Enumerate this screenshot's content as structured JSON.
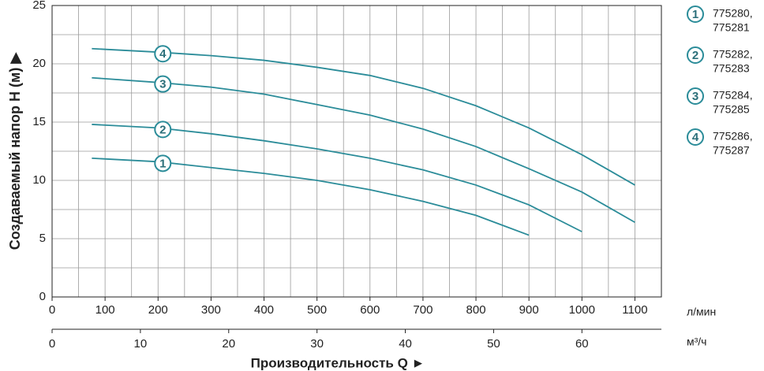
{
  "chart_data": {
    "type": "line",
    "y_label": "Создаваемый напор H (м) ▶",
    "x_label": "Производительность Q ►",
    "x_unit": "л/мин",
    "x2_unit": "м³/ч",
    "xlim": [
      0,
      1150
    ],
    "xticks": [
      0,
      100,
      200,
      300,
      400,
      500,
      600,
      700,
      800,
      900,
      1000,
      1100
    ],
    "x2lim": [
      0,
      69
    ],
    "x2ticks": [
      0,
      10,
      20,
      30,
      40,
      50,
      60
    ],
    "ylim": [
      0,
      25
    ],
    "yticks": [
      0,
      5,
      10,
      15,
      20,
      25
    ],
    "grid": true,
    "series": [
      {
        "name": "1",
        "legend": [
          "775280,",
          "775281"
        ],
        "color": "#2b8c99",
        "x": [
          75,
          200,
          300,
          400,
          500,
          600,
          700,
          800,
          900
        ],
        "values": [
          11.9,
          11.6,
          11.1,
          10.6,
          10.0,
          9.2,
          8.2,
          7.0,
          5.3
        ]
      },
      {
        "name": "2",
        "legend": [
          "775282,",
          "775283"
        ],
        "color": "#2b8c99",
        "x": [
          75,
          200,
          300,
          400,
          500,
          600,
          700,
          800,
          900,
          1000
        ],
        "values": [
          14.8,
          14.5,
          14.0,
          13.4,
          12.7,
          11.9,
          10.9,
          9.6,
          7.9,
          5.6
        ]
      },
      {
        "name": "3",
        "legend": [
          "775284,",
          "775285"
        ],
        "color": "#2b8c99",
        "x": [
          75,
          200,
          300,
          400,
          500,
          600,
          700,
          800,
          900,
          1000,
          1100
        ],
        "values": [
          18.8,
          18.4,
          18.0,
          17.4,
          16.5,
          15.6,
          14.4,
          12.9,
          11.0,
          9.0,
          6.4
        ]
      },
      {
        "name": "4",
        "legend": [
          "775286,",
          "775287"
        ],
        "color": "#2b8c99",
        "x": [
          75,
          200,
          300,
          400,
          500,
          600,
          700,
          800,
          900,
          1000,
          1100
        ],
        "values": [
          21.3,
          21.0,
          20.7,
          20.3,
          19.7,
          19.0,
          17.9,
          16.4,
          14.5,
          12.2,
          9.6
        ]
      }
    ]
  }
}
